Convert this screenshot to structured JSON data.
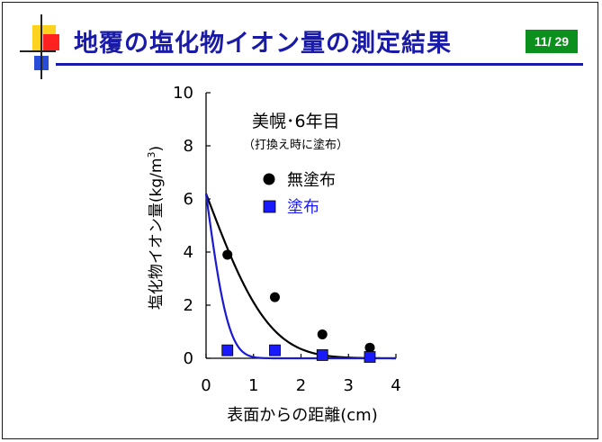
{
  "slide": {
    "title": "地覆の塩化物イオン量の測定結果",
    "page": "11/ 29",
    "accent_color": "#1a1aa8",
    "badge_color": "#0b8f1d"
  },
  "chart_data": {
    "type": "scatter",
    "xlabel": "表面からの距離(cm)",
    "ylabel": "塩化物イオン量(kg/m",
    "ylabel_sup": "3",
    "ylabel_end": ")",
    "xlim": [
      0,
      4
    ],
    "ylim": [
      0,
      10
    ],
    "xticks": [
      "0",
      "1",
      "2",
      "3",
      "4"
    ],
    "yticks": [
      "0",
      "2",
      "4",
      "6",
      "8",
      "10"
    ],
    "grid": false,
    "annotation_title": "美幌･6年目",
    "annotation_sub": "（打換え時に塗布）",
    "legend_position": "top-right",
    "series": [
      {
        "name": "無塗布",
        "marker": "circle",
        "color": "#000000",
        "x": [
          0.45,
          1.45,
          2.45,
          3.45
        ],
        "y": [
          3.9,
          2.3,
          0.9,
          0.4
        ],
        "curve": {
          "type": "diffusion",
          "c0": 6.2,
          "k": 0.55
        }
      },
      {
        "name": "塗布",
        "marker": "square",
        "color": "#1a1aff",
        "curve_color": "#1a1ad0",
        "x": [
          0.45,
          1.45,
          2.45,
          3.45
        ],
        "y": [
          0.3,
          0.3,
          0.12,
          0.05
        ],
        "curve": {
          "type": "diffusion",
          "c0": 6.2,
          "k": 0.07
        }
      }
    ]
  }
}
